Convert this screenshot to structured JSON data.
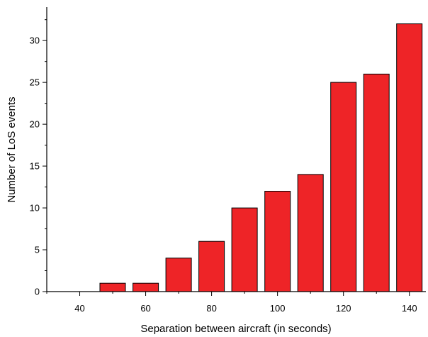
{
  "chart_data": {
    "type": "bar",
    "title": "",
    "xlabel": "Separation between aircraft (in seconds)",
    "ylabel": "Number of LoS events",
    "categories": [
      40,
      50,
      60,
      70,
      80,
      90,
      100,
      110,
      120,
      130,
      140
    ],
    "values": [
      0,
      1,
      1,
      4,
      6,
      10,
      12,
      14,
      25,
      26,
      32
    ],
    "xlim": [
      30,
      145
    ],
    "ylim": [
      0,
      34
    ],
    "x_ticks": [
      "40",
      "60",
      "80",
      "100",
      "120",
      "140"
    ],
    "y_ticks": [
      "0",
      "5",
      "10",
      "15",
      "20",
      "25",
      "30"
    ],
    "bar_color": "#ee2427",
    "grid": false,
    "legend": "none"
  }
}
